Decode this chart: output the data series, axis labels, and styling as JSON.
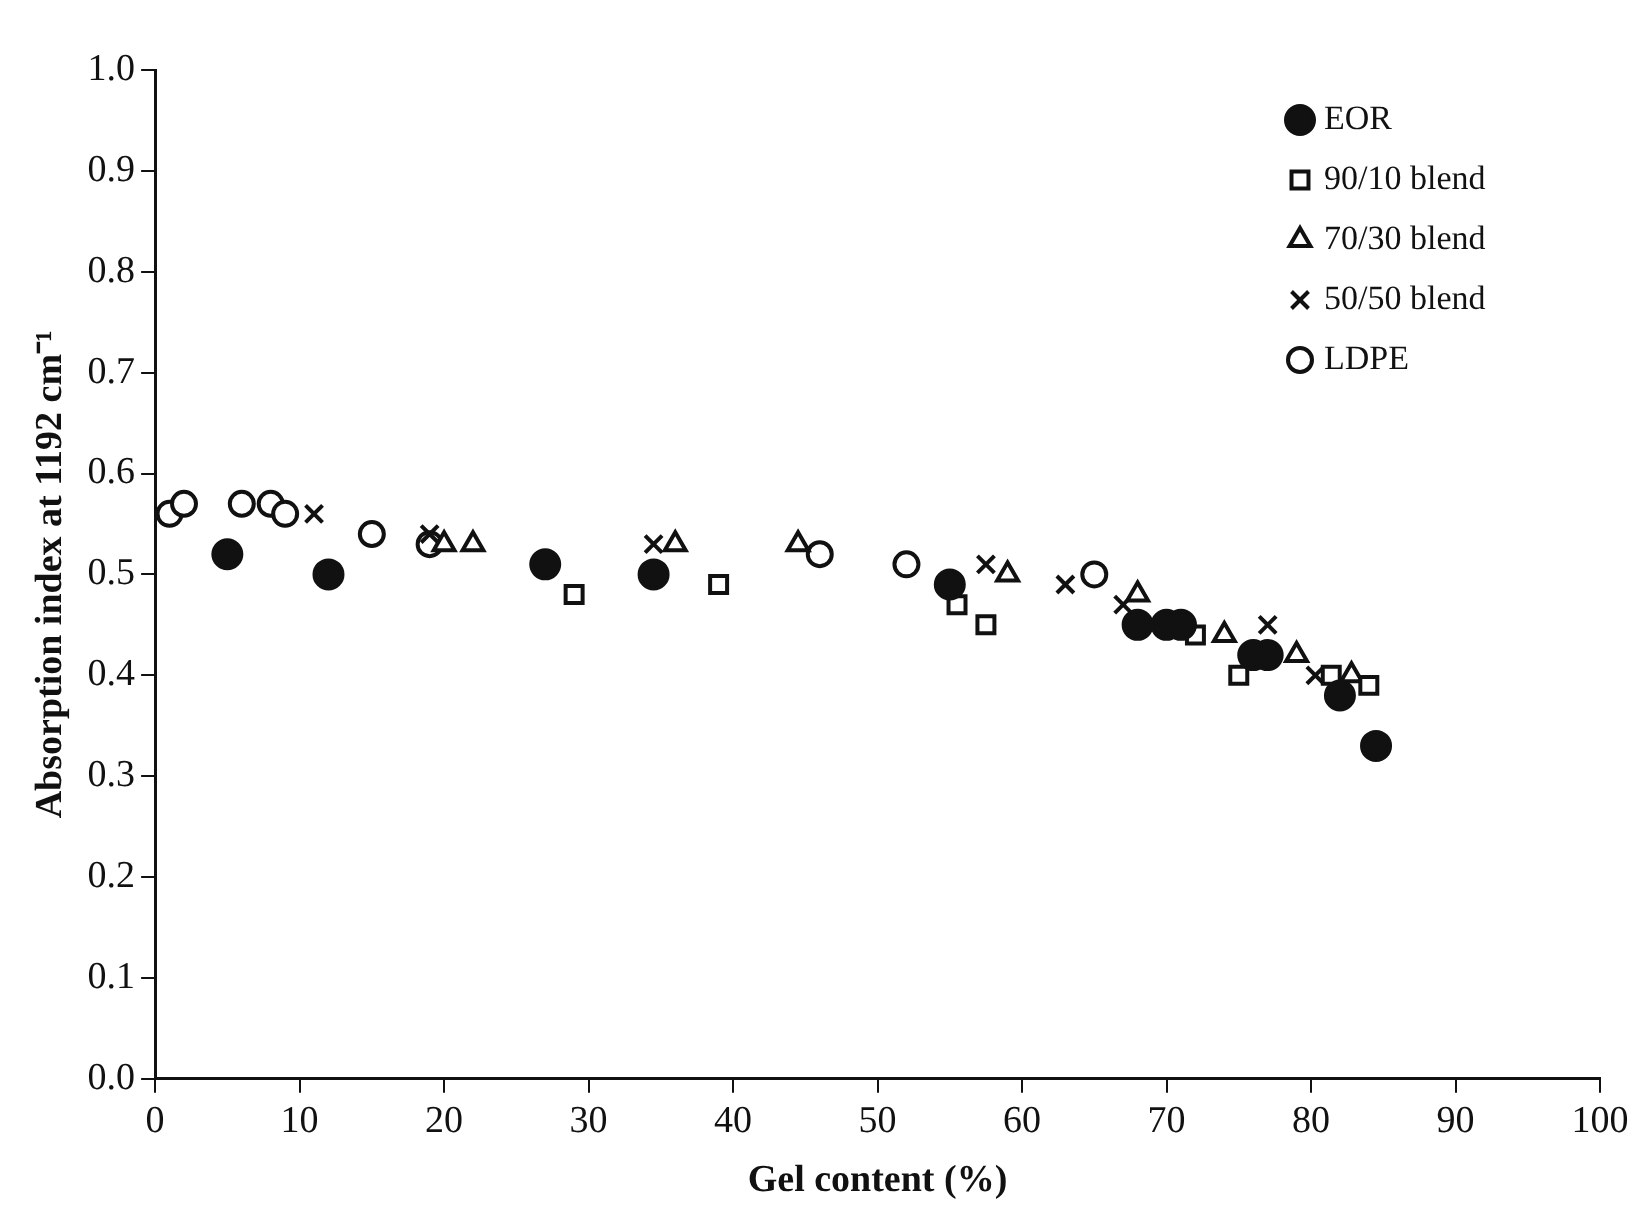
{
  "chart_data": {
    "type": "scatter",
    "xlabel": "Gel content (%)",
    "ylabel": "Absorption index at 1192 cm⁻¹",
    "xlim": [
      0,
      100
    ],
    "xticks": [
      0,
      10,
      20,
      30,
      40,
      50,
      60,
      70,
      80,
      90,
      100
    ],
    "ylim": [
      0,
      1
    ],
    "yticks": [
      {
        "value": 0,
        "label": "0.0"
      },
      {
        "value": 0.1,
        "label": "0.1"
      },
      {
        "value": 0.2,
        "label": "0.2"
      },
      {
        "value": 0.3,
        "label": "0.3"
      },
      {
        "value": 0.4,
        "label": "0.4"
      },
      {
        "value": 0.5,
        "label": "0.5"
      },
      {
        "value": 0.6,
        "label": "0.6"
      },
      {
        "value": 0.7,
        "label": "0.7"
      },
      {
        "value": 0.8,
        "label": "0.8"
      },
      {
        "value": 0.9,
        "label": "0.9"
      },
      {
        "value": 1,
        "label": "1.0"
      }
    ],
    "grid": false,
    "legend": "top right",
    "series": [
      {
        "name": "EOR",
        "color": "#111111",
        "marker": "circle",
        "x": [
          5,
          12,
          27,
          34.5,
          55,
          68,
          70,
          71,
          76,
          77,
          82,
          84.5
        ],
        "values": [
          0.52,
          0.5,
          0.51,
          0.5,
          0.49,
          0.45,
          0.45,
          0.45,
          0.42,
          0.42,
          0.38,
          0.33
        ]
      },
      {
        "name": "90/10 blend",
        "color": "#111111",
        "marker": "square",
        "x": [
          29,
          39,
          55.5,
          57.5,
          72,
          75,
          81.4,
          84
        ],
        "values": [
          0.48,
          0.49,
          0.47,
          0.45,
          0.44,
          0.4,
          0.4,
          0.39
        ]
      },
      {
        "name": "70/30 blend",
        "color": "#111111",
        "marker": "triangle",
        "x": [
          20,
          22,
          36,
          44.5,
          59,
          68,
          74,
          79,
          82.8
        ],
        "values": [
          0.53,
          0.53,
          0.53,
          0.53,
          0.5,
          0.48,
          0.44,
          0.42,
          0.4
        ]
      },
      {
        "name": "50/50 blend",
        "color": "#111111",
        "marker": "cross",
        "x": [
          11,
          19,
          34.5,
          57.5,
          63,
          67,
          77,
          80.3
        ],
        "values": [
          0.56,
          0.54,
          0.53,
          0.51,
          0.49,
          0.47,
          0.45,
          0.4
        ]
      },
      {
        "name": "LDPE",
        "color": "#111111",
        "marker": "circle",
        "x": [
          1,
          2,
          6,
          8,
          9,
          15,
          19,
          46,
          52,
          65
        ],
        "values": [
          0.56,
          0.57,
          0.57,
          0.57,
          0.56,
          0.54,
          0.53,
          0.52,
          0.51,
          0.5
        ]
      }
    ]
  }
}
